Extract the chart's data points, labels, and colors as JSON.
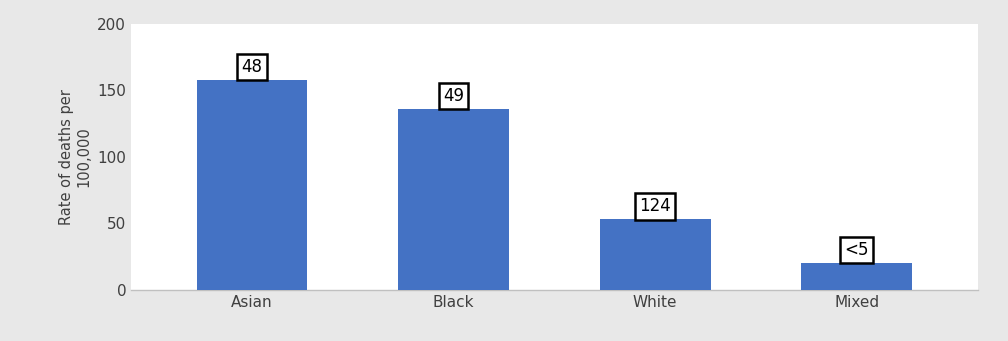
{
  "categories": [
    "Asian",
    "Black",
    "White",
    "Mixed"
  ],
  "values": [
    158,
    136,
    53,
    20
  ],
  "labels": [
    "48",
    "49",
    "124",
    "<5"
  ],
  "bar_color": "#4472C4",
  "ylabel_line1": "Rate of deaths per",
  "ylabel_line2": "100,000",
  "ylim": [
    0,
    200
  ],
  "yticks": [
    0,
    50,
    100,
    150,
    200
  ],
  "background_color": "#e8e8e8",
  "plot_background": "#ffffff",
  "label_fontsize": 12,
  "axis_fontsize": 10.5,
  "tick_fontsize": 11,
  "bar_width": 0.55
}
